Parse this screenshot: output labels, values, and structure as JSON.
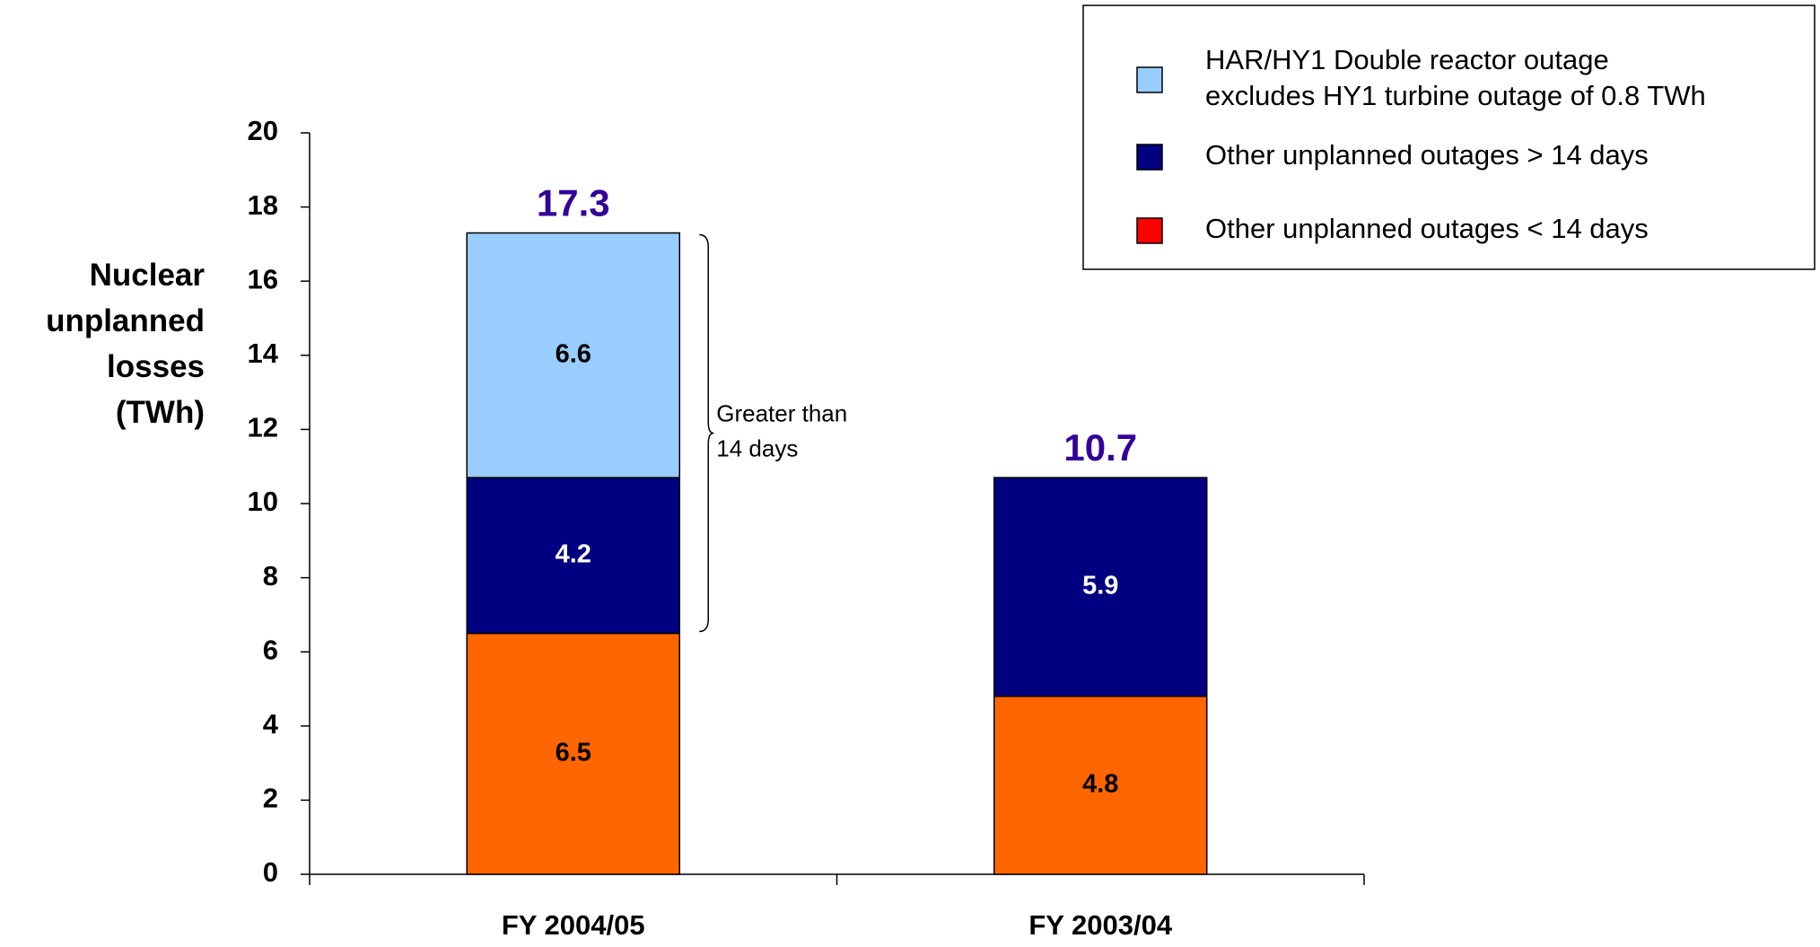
{
  "chart_data": {
    "type": "stacked_bar",
    "y_label": "Nuclear\nunplanned\nlosses\n(TWh)",
    "categories": [
      "FY 2004/05",
      "FY 2003/04"
    ],
    "series": [
      {
        "name": "Other unplanned outages < 14 days",
        "color": "#ff6600",
        "legend_color": "#ff0000",
        "label_color": "#000000",
        "values": [
          6.5,
          4.8
        ]
      },
      {
        "name": "Other unplanned outages > 14 days",
        "color": "#000080",
        "legend_color": "#000080",
        "label_color": "#ffffff",
        "values": [
          4.2,
          5.9
        ]
      },
      {
        "name": "HAR/HY1 Double reactor outage\nexcludes HY1 turbine outage of 0.8 TWh",
        "color": "#99ccff",
        "legend_color": "#99ccff",
        "label_color": "#000000",
        "values": [
          6.6,
          null
        ]
      }
    ],
    "totals": [
      17.3,
      10.7
    ],
    "totals_color": "#330099",
    "annotation": "Greater than\n14 days",
    "ylim": [
      0,
      20
    ],
    "yticks": [
      0,
      2,
      4,
      6,
      8,
      10,
      12,
      14,
      16,
      18,
      20
    ],
    "legend": "top-right"
  }
}
